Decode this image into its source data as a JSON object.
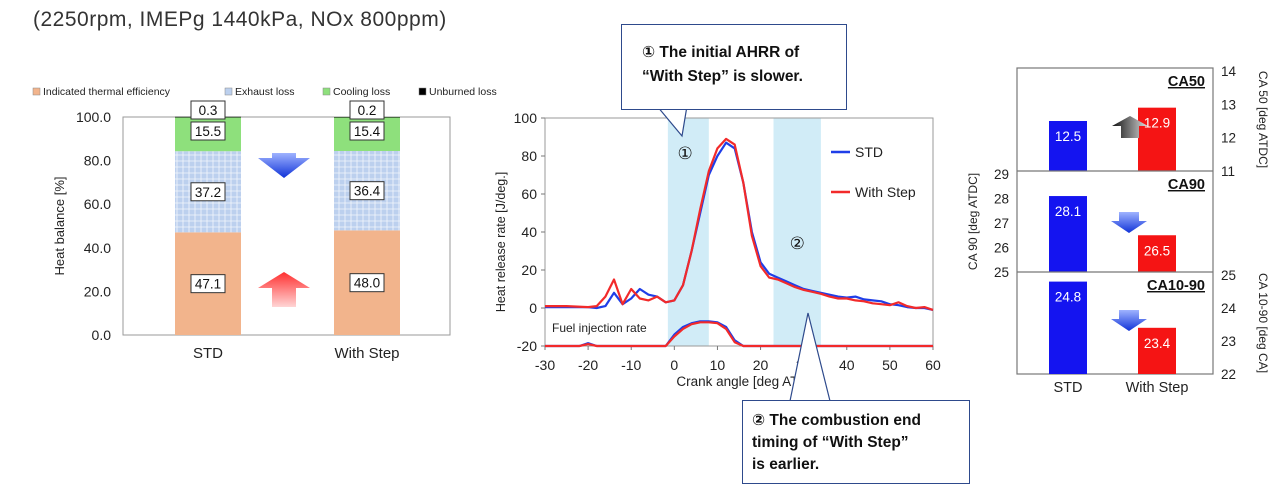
{
  "condition_text": "(2250rpm, IMEPg 1440kPa, NOx 800ppm)",
  "callout1": {
    "line1": "① The initial AHRR of",
    "line2": "“With Step” is slower."
  },
  "callout2": {
    "line1": "② The combustion end",
    "line2": "timing of “With Step”",
    "line3": "is earlier."
  },
  "colors": {
    "thermal": "#f2b48c",
    "exhaust": "#bcd0ee",
    "cooling": "#8ee07c",
    "unburned": "#000000",
    "std": "#1f3ee8",
    "withstep": "#f22a2a",
    "highlight": "#c9e9f6"
  },
  "chart_data": [
    {
      "type": "bar",
      "stacked": true,
      "categories": [
        "STD",
        "With Step"
      ],
      "series": [
        {
          "name": "Indicated thermal efficiency",
          "values": [
            47.1,
            48.0
          ]
        },
        {
          "name": "Exhaust loss",
          "values": [
            37.2,
            36.4
          ]
        },
        {
          "name": "Cooling loss",
          "values": [
            15.5,
            15.4
          ]
        },
        {
          "name": "Unburned loss",
          "values": [
            0.3,
            0.2
          ]
        }
      ],
      "ylabel": "Heat balance [%]",
      "ylim": [
        0,
        100
      ],
      "yticks": [
        "0.0",
        "20.0",
        "40.0",
        "60.0",
        "80.0",
        "100.0"
      ],
      "legend": "top"
    },
    {
      "type": "line",
      "xlabel": "Crank angle [deg ATDC]",
      "ylabel": "Heat release rate [J/deg.]",
      "xlim": [
        -30,
        60
      ],
      "ylim": [
        -20,
        100
      ],
      "xticks": [
        "-30",
        "-20",
        "-10",
        "0",
        "10",
        "20",
        "30",
        "40",
        "50",
        "60"
      ],
      "yticks": [
        "-20",
        "0",
        "20",
        "40",
        "60",
        "80",
        "100"
      ],
      "annotation": "Fuel injection rate",
      "markers": [
        "①",
        "②"
      ],
      "highlight_ranges": [
        [
          -1.5,
          8
        ],
        [
          23,
          34
        ]
      ],
      "legend": "right",
      "series": [
        {
          "name": "STD",
          "x": [
            -30,
            -25,
            -20,
            -18,
            -16,
            -14,
            -12,
            -10,
            -8,
            -6,
            -4,
            -2,
            0,
            2,
            4,
            6,
            8,
            10,
            12,
            14,
            16,
            18,
            20,
            22,
            24,
            26,
            28,
            30,
            32,
            34,
            36,
            38,
            40,
            42,
            44,
            46,
            48,
            50,
            52,
            54,
            56,
            58,
            60
          ],
          "y": [
            0.5,
            0.5,
            0.5,
            0,
            1,
            8,
            2,
            5,
            10,
            7,
            6,
            3,
            4,
            12,
            30,
            50,
            70,
            80,
            87,
            84,
            66,
            40,
            24,
            18,
            16,
            14,
            12,
            10,
            9,
            8,
            7,
            6,
            5.5,
            6,
            4.5,
            4,
            3.5,
            2,
            1.5,
            0.5,
            0,
            0,
            -1
          ]
        },
        {
          "name": "With Step",
          "x": [
            -30,
            -25,
            -20,
            -18,
            -16,
            -14,
            -12,
            -10,
            -8,
            -6,
            -4,
            -2,
            0,
            2,
            4,
            6,
            8,
            10,
            12,
            14,
            16,
            18,
            20,
            22,
            24,
            26,
            28,
            30,
            32,
            34,
            36,
            38,
            40,
            42,
            44,
            46,
            48,
            50,
            52,
            54,
            56,
            58,
            60
          ],
          "y": [
            1,
            1,
            0.5,
            1,
            6,
            15,
            2,
            10,
            5,
            4,
            6,
            3,
            4,
            12,
            30,
            52,
            72,
            84,
            89,
            86,
            66,
            38,
            22,
            16,
            15,
            13,
            11,
            9.5,
            8.5,
            7.5,
            6,
            5,
            5,
            4,
            3.5,
            2.5,
            2,
            1.5,
            3,
            1,
            0,
            0.5,
            -1
          ]
        },
        {
          "name": "Fuel injection STD",
          "x": [
            -30,
            -22,
            -20,
            -18,
            -4,
            -2,
            0,
            2,
            4,
            6,
            8,
            10,
            12,
            14,
            16,
            18,
            20,
            30,
            40,
            50,
            60
          ],
          "y": [
            -20,
            -20,
            -18.5,
            -20,
            -20,
            -20,
            -14,
            -10,
            -8,
            -7,
            -7,
            -7.5,
            -10,
            -17,
            -20,
            -20,
            -20,
            -20,
            -20,
            -20,
            -20
          ]
        },
        {
          "name": "Fuel injection With Step",
          "x": [
            -30,
            -22,
            -20,
            -18,
            -4,
            -2,
            0,
            2,
            4,
            6,
            8,
            10,
            12,
            14,
            16,
            18,
            20,
            30,
            40,
            50,
            60
          ],
          "y": [
            -20,
            -20,
            -19,
            -20,
            -20,
            -20,
            -15,
            -11,
            -8.5,
            -7.5,
            -7.5,
            -8,
            -11,
            -18,
            -20,
            -20,
            -20,
            -20,
            -20,
            -20,
            -20
          ]
        }
      ]
    },
    {
      "type": "bar",
      "title": "CA50",
      "categories": [
        "STD",
        "With Step"
      ],
      "values": [
        12.5,
        12.9
      ],
      "ylabel": "CA 50 [deg ATDC]",
      "ylim": [
        11,
        14
      ],
      "yticks": [
        "11",
        "12",
        "13",
        "14"
      ],
      "labels": [
        "12.5",
        "12.9"
      ]
    },
    {
      "type": "bar",
      "title": "CA90",
      "categories": [
        "STD",
        "With Step"
      ],
      "values": [
        28.1,
        26.5
      ],
      "ylabel": "CA 90 [deg ATDC]",
      "ylim": [
        25,
        29
      ],
      "yticks": [
        "25",
        "26",
        "27",
        "28",
        "29"
      ],
      "labels": [
        "28.1",
        "26.5"
      ]
    },
    {
      "type": "bar",
      "title": "CA10-90",
      "categories": [
        "STD",
        "With Step"
      ],
      "values": [
        24.8,
        23.4
      ],
      "ylabel": "CA 10-90 [deg CA]",
      "ylim": [
        22,
        25
      ],
      "yticks": [
        "22",
        "23",
        "24",
        "25"
      ],
      "labels": [
        "24.8",
        "23.4"
      ]
    }
  ]
}
